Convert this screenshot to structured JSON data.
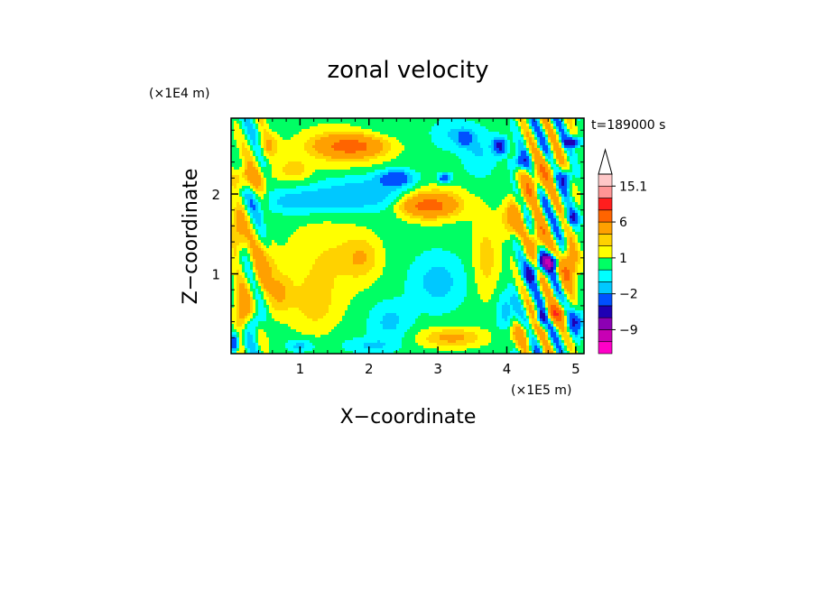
{
  "chart_data": {
    "type": "heatmap",
    "title": "zonal velocity",
    "xlabel": "X−coordinate",
    "ylabel": "Z−coordinate",
    "x_multiplier": "(×1E5 m)",
    "y_multiplier": "(×1E4 m)",
    "time_label": "t=189000 s",
    "xlim": [
      0,
      5.12
    ],
    "ylim": [
      0,
      2.95
    ],
    "x_ticks": [
      1,
      2,
      3,
      4,
      5
    ],
    "x_tick_labels": [
      "1",
      "2",
      "3",
      "4",
      "5"
    ],
    "y_ticks": [
      1,
      2
    ],
    "y_tick_labels": [
      "1",
      "2"
    ],
    "colorbar": {
      "labels": [
        "15.1",
        "6",
        "1",
        "−2",
        "−9"
      ],
      "label_levels": [
        15.1,
        6,
        1,
        -2,
        -9
      ],
      "level_bounds": [
        -15,
        -12,
        -9,
        -6,
        -4,
        -2,
        -1,
        0,
        1,
        2,
        3,
        6,
        9,
        12,
        15.1
      ],
      "colors": [
        "#ff00c8",
        "#c800b4",
        "#8c00b4",
        "#1e00b4",
        "#0050ff",
        "#00c8ff",
        "#00ffff",
        "#00ff64",
        "#ffff00",
        "#ffd200",
        "#ffa000",
        "#ff6400",
        "#ff1e1e",
        "#ff9696",
        "#ffc8c8"
      ],
      "extend": "max"
    },
    "grid": false,
    "notes_visible": "",
    "features": [
      {
        "x": 0.1,
        "z": 1.5,
        "v": 3,
        "sx": 0.12,
        "sz": 0.35
      },
      {
        "x": 0.15,
        "z": 0.5,
        "v": 4,
        "sx": 0.1,
        "sz": 0.3
      },
      {
        "x": 0.2,
        "z": 2.2,
        "v": 3,
        "sx": 0.25,
        "sz": 0.15
      },
      {
        "x": 0.35,
        "z": 0.4,
        "v": -3,
        "sx": 0.1,
        "sz": 0.15
      },
      {
        "x": 0.05,
        "z": 0.15,
        "v": -5,
        "sx": 0.06,
        "sz": 0.12
      },
      {
        "x": 0.45,
        "z": 1.05,
        "v": 3,
        "sx": 0.18,
        "sz": 0.3
      },
      {
        "x": 0.7,
        "z": 0.75,
        "v": 2.5,
        "sx": 0.18,
        "sz": 0.25
      },
      {
        "x": 1.4,
        "z": 1.2,
        "v": 1.5,
        "sx": 0.6,
        "sz": 0.5
      },
      {
        "x": 1.9,
        "z": 1.2,
        "v": 2,
        "sx": 0.25,
        "sz": 0.25
      },
      {
        "x": 1.2,
        "z": 0.6,
        "v": 1.8,
        "sx": 0.35,
        "sz": 0.35
      },
      {
        "x": 1.75,
        "z": 2.6,
        "v": 5,
        "sx": 0.45,
        "sz": 0.12
      },
      {
        "x": 1.75,
        "z": 2.6,
        "v": 3,
        "sx": 0.65,
        "sz": 0.25
      },
      {
        "x": 2.0,
        "z": 2.0,
        "v": -2.5,
        "sx": 0.8,
        "sz": 0.22
      },
      {
        "x": 1.0,
        "z": 1.9,
        "v": -2,
        "sx": 0.6,
        "sz": 0.15
      },
      {
        "x": 2.4,
        "z": 2.2,
        "v": -3.5,
        "sx": 0.25,
        "sz": 0.1
      },
      {
        "x": 2.85,
        "z": 1.85,
        "v": 5,
        "sx": 0.35,
        "sz": 0.12
      },
      {
        "x": 2.9,
        "z": 1.9,
        "v": 3,
        "sx": 0.5,
        "sz": 0.22
      },
      {
        "x": 2.3,
        "z": 0.4,
        "v": -1.8,
        "sx": 0.3,
        "sz": 0.25
      },
      {
        "x": 3.0,
        "z": 0.9,
        "v": -2,
        "sx": 0.4,
        "sz": 0.35
      },
      {
        "x": 3.2,
        "z": 0.2,
        "v": 3,
        "sx": 0.45,
        "sz": 0.12
      },
      {
        "x": 3.1,
        "z": 2.2,
        "v": -4,
        "sx": 0.1,
        "sz": 0.06
      },
      {
        "x": 3.6,
        "z": 2.5,
        "v": -1.5,
        "sx": 0.25,
        "sz": 0.3
      },
      {
        "x": 3.7,
        "z": 1.2,
        "v": 2,
        "sx": 0.2,
        "sz": 0.5
      },
      {
        "x": 3.9,
        "z": 2.6,
        "v": -5,
        "sx": 0.1,
        "sz": 0.1
      },
      {
        "x": 4.2,
        "z": 2.4,
        "v": -4,
        "sx": 0.12,
        "sz": 0.1
      },
      {
        "x": 4.35,
        "z": 2.1,
        "v": 4,
        "sx": 0.15,
        "sz": 0.2
      },
      {
        "x": 4.6,
        "z": 2.3,
        "v": 3,
        "sx": 0.2,
        "sz": 0.2
      },
      {
        "x": 4.95,
        "z": 2.65,
        "v": -6,
        "sx": 0.12,
        "sz": 0.06
      },
      {
        "x": 4.85,
        "z": 2.2,
        "v": -5,
        "sx": 0.1,
        "sz": 0.12
      },
      {
        "x": 4.1,
        "z": 1.7,
        "v": 4,
        "sx": 0.15,
        "sz": 0.2
      },
      {
        "x": 4.45,
        "z": 1.45,
        "v": 5,
        "sx": 0.12,
        "sz": 0.2
      },
      {
        "x": 4.6,
        "z": 1.15,
        "v": -8,
        "sx": 0.15,
        "sz": 0.1
      },
      {
        "x": 4.35,
        "z": 1.0,
        "v": -4,
        "sx": 0.12,
        "sz": 0.12
      },
      {
        "x": 4.9,
        "z": 1.1,
        "v": 6,
        "sx": 0.12,
        "sz": 0.25
      },
      {
        "x": 4.7,
        "z": 0.5,
        "v": 6,
        "sx": 0.15,
        "sz": 0.12
      },
      {
        "x": 4.5,
        "z": 0.45,
        "v": -5,
        "sx": 0.08,
        "sz": 0.1
      },
      {
        "x": 5.0,
        "z": 0.4,
        "v": -4,
        "sx": 0.1,
        "sz": 0.15
      },
      {
        "x": 4.2,
        "z": 0.25,
        "v": 3,
        "sx": 0.2,
        "sz": 0.15
      },
      {
        "x": 4.0,
        "z": 0.5,
        "v": -2,
        "sx": 0.15,
        "sz": 0.3
      },
      {
        "x": 4.95,
        "z": 1.7,
        "v": -4,
        "sx": 0.1,
        "sz": 0.1
      },
      {
        "x": 0.55,
        "z": 2.6,
        "v": 2.5,
        "sx": 0.15,
        "sz": 0.15
      },
      {
        "x": 0.9,
        "z": 2.3,
        "v": 2,
        "sx": 0.25,
        "sz": 0.15
      },
      {
        "x": 3.2,
        "z": 2.75,
        "v": -1.5,
        "sx": 0.3,
        "sz": 0.2
      },
      {
        "x": 3.4,
        "z": 2.7,
        "v": -2.5,
        "sx": 0.12,
        "sz": 0.1
      },
      {
        "x": 2.1,
        "z": 2.7,
        "v": -1.2,
        "sx": 0.5,
        "sz": 0.3
      },
      {
        "x": 1.0,
        "z": 0.1,
        "v": -2,
        "sx": 0.2,
        "sz": 0.08
      },
      {
        "x": 2.0,
        "z": 0.1,
        "v": -1.5,
        "sx": 0.4,
        "sz": 0.1
      }
    ],
    "waves": [
      {
        "x0": 4.0,
        "x1": 5.12,
        "amp": 3.5,
        "kx": 18,
        "kz": 9
      },
      {
        "x0": 0.0,
        "x1": 0.6,
        "amp": 2.2,
        "kx": 14,
        "kz": 7
      }
    ],
    "background": 0.5
  }
}
